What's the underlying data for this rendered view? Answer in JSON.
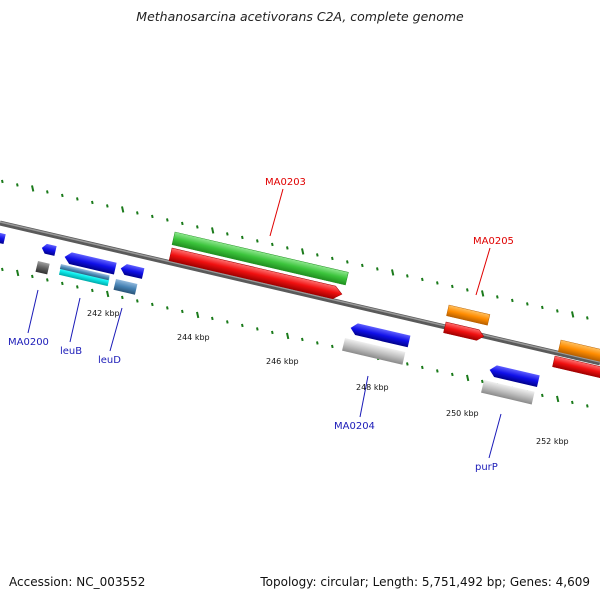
{
  "title": "Methanosarcina acetivorans C2A, complete genome",
  "accession": "Accession: NC_003552",
  "topology": "Topology: circular; Length: 5,751,492 bp; Genes: 4,609",
  "tick_labels": [
    "242 kbp",
    "244 kbp",
    "246 kbp",
    "248 kbp",
    "250 kbp",
    "252 kbp"
  ],
  "gene_labels": {
    "ma0200": "MA0200",
    "leub": "leuB",
    "leud": "leuD",
    "ma0203": "MA0203",
    "ma0204": "MA0204",
    "ma0205": "MA0205",
    "purp": "purP"
  },
  "colors": {
    "green": "#3cc43c",
    "red": "#f01010",
    "blue": "#1010e8",
    "orange": "#ff8c00",
    "gray": "#c0c0c0",
    "cyan": "#10f0f0",
    "steelblue": "#4682b4",
    "darkgray": "#606060",
    "tick": "#1a7a1a",
    "label_red": "#e00000",
    "label_blue": "#1b1bb8"
  }
}
